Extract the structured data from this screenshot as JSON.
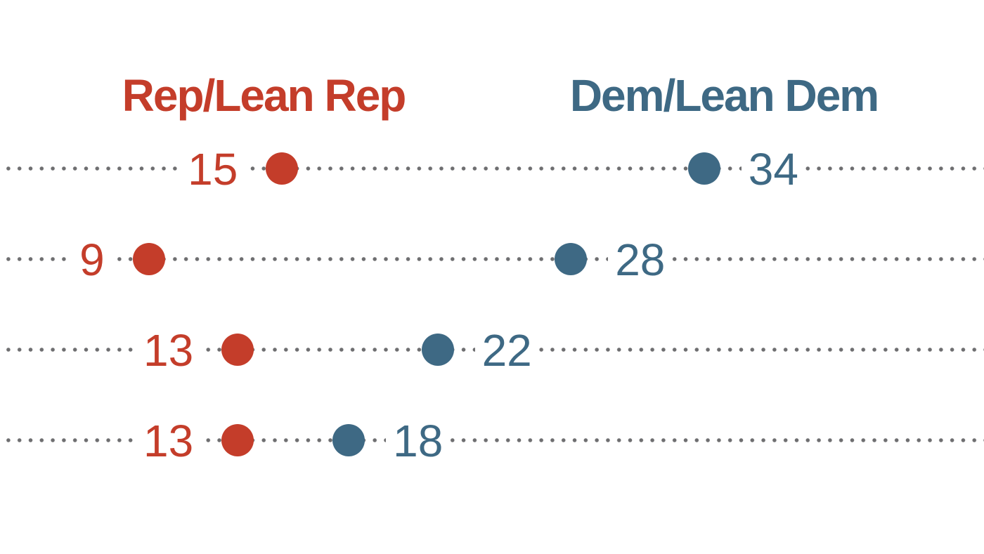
{
  "page": {
    "background": "#ffffff"
  },
  "chart_data": {
    "type": "scatter",
    "subtype": "dumbbell-dot-plot",
    "title": "",
    "n_rows": 4,
    "series": [
      {
        "name": "Rep/Lean Rep",
        "color": "#c43d2a",
        "values": [
          15,
          9,
          13,
          13
        ],
        "value_label_side": "left"
      },
      {
        "name": "Dem/Lean Dem",
        "color": "#3e6984",
        "values": [
          34,
          28,
          22,
          18
        ],
        "value_label_side": "right"
      }
    ],
    "xlim": [
      2.3,
      46.6
    ],
    "grid": "horizontal dotted leader lines, full width",
    "leader_dot_color": "#6e6e70",
    "legend_position": "top, as colored column headers",
    "axis_labels_visible": false,
    "category_labels_visible": false
  }
}
